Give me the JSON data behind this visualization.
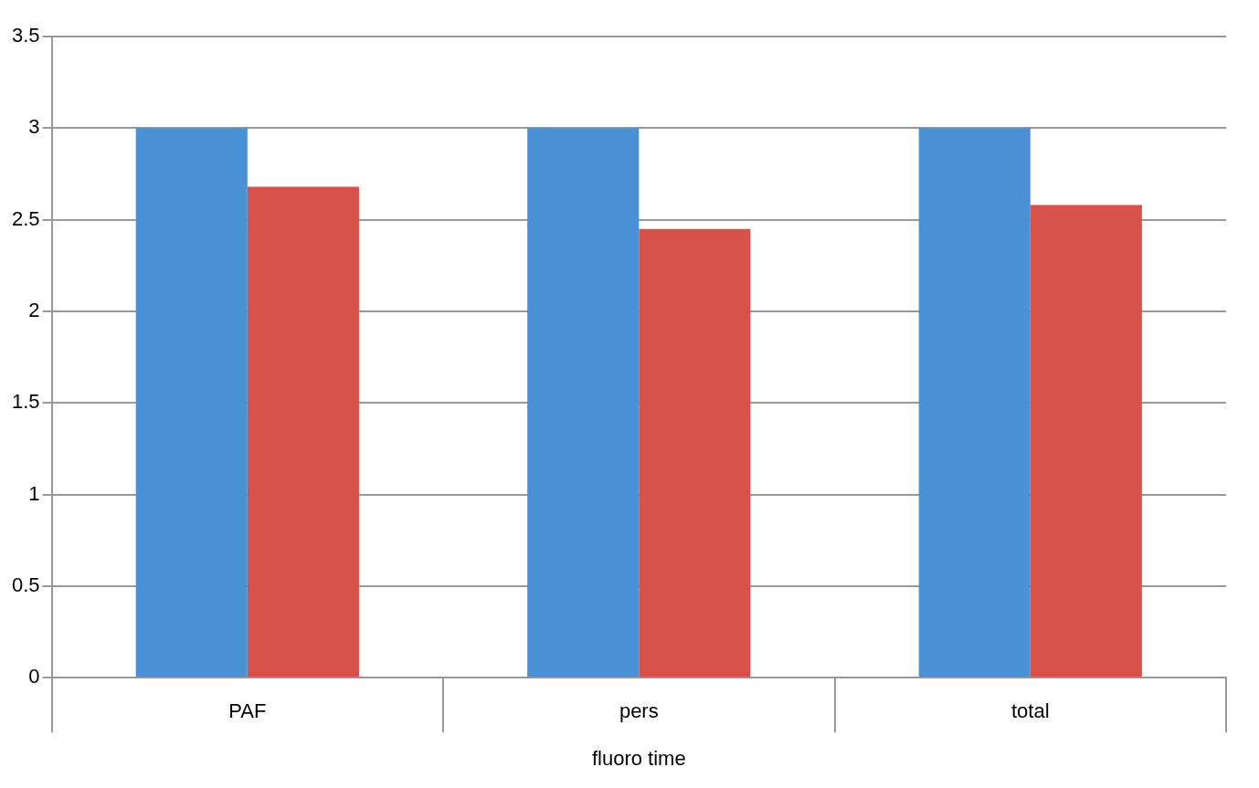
{
  "chart_data": {
    "type": "bar",
    "xlabel": "fluoro time",
    "categories": [
      "PAF",
      "pers",
      "total"
    ],
    "series": [
      {
        "color": "#4a90d4",
        "values": [
          3,
          3,
          3
        ]
      },
      {
        "color": "#d5514a",
        "values": [
          2.68,
          2.45,
          2.58
        ]
      }
    ],
    "ylim": [
      0,
      3.5
    ],
    "yticks": [
      0,
      0.5,
      1,
      1.5,
      2,
      2.5,
      3,
      3.5
    ],
    "grid": "y",
    "legend": false
  }
}
